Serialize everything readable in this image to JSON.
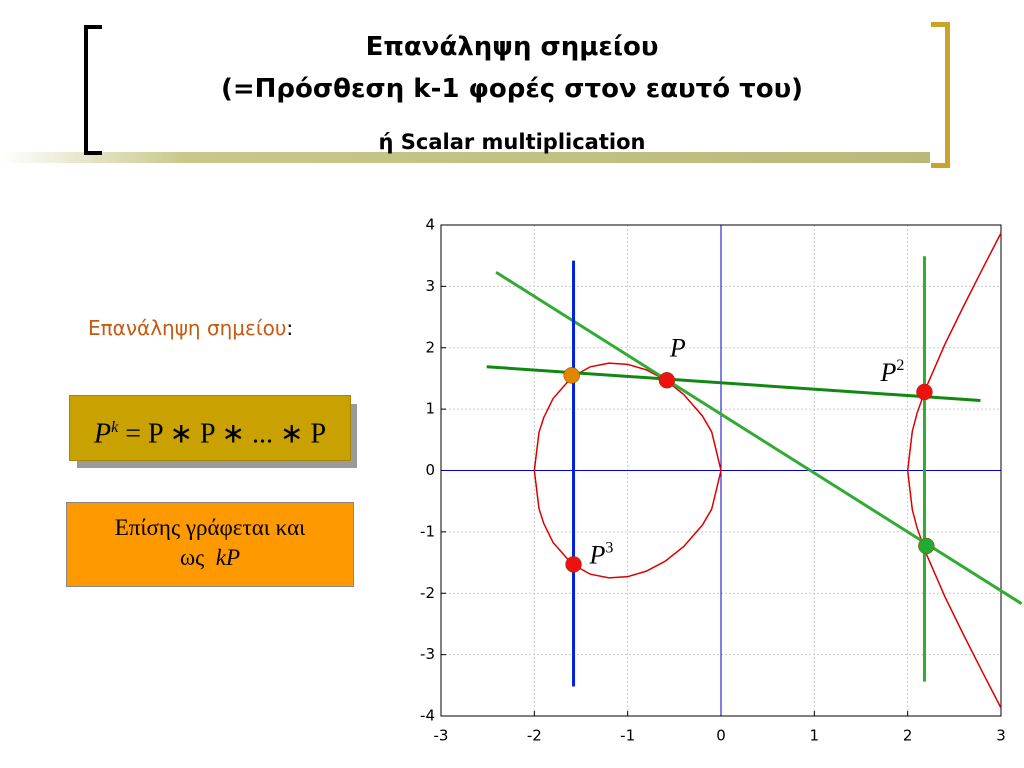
{
  "slide": {
    "title_line1": "Επανάληψη σημείου",
    "title_line2": "(=Πρόσθεση k-1 φορές στον εαυτό του)",
    "subtitle": "ή Scalar multiplication",
    "label": "Επανάληψη σημείου",
    "label_colon": ":",
    "formula_base": "P",
    "formula_exp": "k",
    "formula_rest": " = P ∗ P ∗ ... ∗ P",
    "note_line1": "Επίσης γράφεται και",
    "note_line2_word": "ως",
    "note_line2_math": "kP"
  },
  "chart_data": {
    "type": "line",
    "xlim": [
      -3,
      3
    ],
    "ylim": [
      -4,
      4
    ],
    "xticks": [
      -3,
      -2,
      -1,
      0,
      1,
      2,
      3
    ],
    "yticks": [
      -4,
      -3,
      -2,
      -1,
      0,
      1,
      2,
      3,
      4
    ],
    "grid": true,
    "zero_line_color": "#0000cc",
    "series": [
      {
        "color": "#dd0000",
        "x": [
          -2,
          -1.95,
          -1.9,
          -1.8,
          -1.6,
          -1.4,
          -1.2,
          -1,
          -0.8,
          -0.6,
          -0.4,
          -0.2,
          -0.1,
          0,
          -0.1,
          -0.2,
          -0.4,
          -0.6,
          -0.8,
          -1,
          -1.2,
          -1.4,
          -1.6,
          -1.8,
          -1.9,
          -1.95,
          -2,
          null,
          3,
          2.8,
          2.6,
          2.4,
          2.2,
          2.1,
          2.05,
          2,
          2.05,
          2.1,
          2.2,
          2.4,
          2.6,
          2.8,
          3
        ],
        "values": [
          0,
          0.62,
          0.86,
          1.17,
          1.52,
          1.69,
          1.75,
          1.73,
          1.64,
          1.48,
          1.24,
          0.89,
          0.63,
          0,
          -0.63,
          -0.89,
          -1.24,
          -1.48,
          -1.64,
          -1.73,
          -1.75,
          -1.69,
          -1.52,
          -1.17,
          -0.86,
          -0.62,
          0,
          null,
          -3.87,
          -3.28,
          -2.68,
          -2.06,
          -1.36,
          -0.93,
          -0.64,
          0,
          0.64,
          0.93,
          1.36,
          2.06,
          2.68,
          3.28,
          3.87
        ]
      },
      {
        "color": "#33aa33",
        "x": [
          -2.41,
          3.22
        ],
        "values": [
          3.23,
          -2.17
        ]
      },
      {
        "color": "#118811",
        "x": [
          -2.51,
          2.78
        ],
        "values": [
          1.69,
          1.14
        ]
      },
      {
        "color": "#0022dd",
        "x": [
          -1.58,
          -1.58
        ],
        "values": [
          3.42,
          -3.52
        ]
      },
      {
        "color": "#33aa33",
        "x": [
          2.18,
          2.18
        ],
        "values": [
          3.49,
          -3.44
        ]
      }
    ],
    "points": [
      {
        "x": -0.58,
        "y": 1.47,
        "color": "#ee1111",
        "label": "P"
      },
      {
        "x": 2.18,
        "y": 1.28,
        "color": "#ee1111",
        "label": "P",
        "sup": "2"
      },
      {
        "x": -1.58,
        "y": -1.53,
        "color": "#ee1111",
        "label": "P",
        "sup": "3"
      },
      {
        "x": -1.6,
        "y": 1.55,
        "color": "#dd8800"
      },
      {
        "x": 2.2,
        "y": -1.23,
        "color": "#22aa33"
      }
    ]
  }
}
